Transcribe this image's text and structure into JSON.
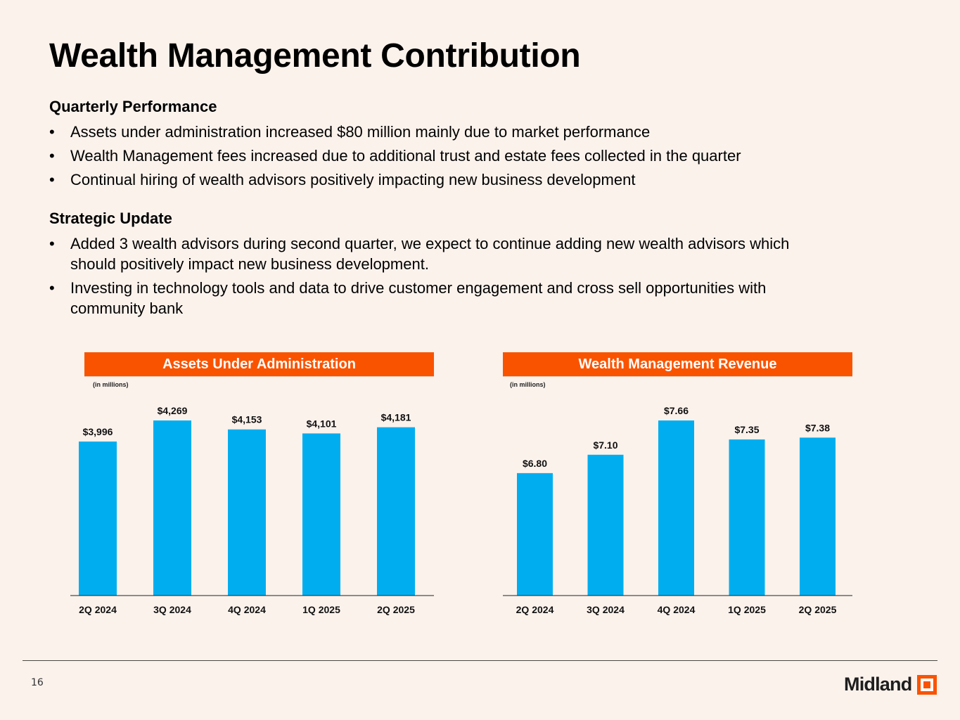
{
  "page": {
    "title": "Wealth Management Contribution",
    "page_number": "16"
  },
  "sections": [
    {
      "heading": "Quarterly Performance",
      "bullets": [
        "Assets under administration increased $80 million mainly due to market performance",
        "Wealth Management fees increased due to additional trust and estate fees collected in the quarter",
        "Continual hiring of wealth advisors positively impacting new business development"
      ]
    },
    {
      "heading": "Strategic Update",
      "bullets": [
        "Added 3 wealth advisors during second quarter, we expect to continue adding new wealth advisors which should positively impact new business development.",
        "Investing in technology tools and data to drive customer engagement and cross sell opportunities with community bank"
      ]
    }
  ],
  "bullet_glyph": "•",
  "logo": {
    "text": "Midland",
    "mark_color": "#fa5300"
  },
  "colors": {
    "accent": "#fa5300",
    "bar": "#00aeef",
    "background": "#fbf2ec"
  },
  "chart_data": [
    {
      "type": "bar",
      "title": "Assets Under Administration",
      "subtitle": "(in millions)",
      "categories": [
        "2Q 2024",
        "3Q 2024",
        "4Q 2024",
        "1Q 2025",
        "2Q 2025"
      ],
      "values": [
        3996,
        4269,
        4153,
        4101,
        4181
      ],
      "data_labels": [
        "$3,996",
        "$4,269",
        "$4,153",
        "$4,101",
        "$4,181"
      ],
      "xlabel": "",
      "ylabel": "",
      "ylim": [
        2000,
        4269
      ],
      "grid": false,
      "legend": "none"
    },
    {
      "type": "bar",
      "title": "Wealth Management Revenue",
      "subtitle": "(in millions)",
      "categories": [
        "2Q 2024",
        "3Q 2024",
        "4Q 2024",
        "1Q 2025",
        "2Q 2025"
      ],
      "values": [
        6.8,
        7.1,
        7.66,
        7.35,
        7.38
      ],
      "data_labels": [
        "$6.80",
        "$7.10",
        "$7.66",
        "$7.35",
        "$7.38"
      ],
      "xlabel": "",
      "ylabel": "",
      "ylim": [
        4.8,
        7.66
      ],
      "grid": false,
      "legend": "none"
    }
  ]
}
